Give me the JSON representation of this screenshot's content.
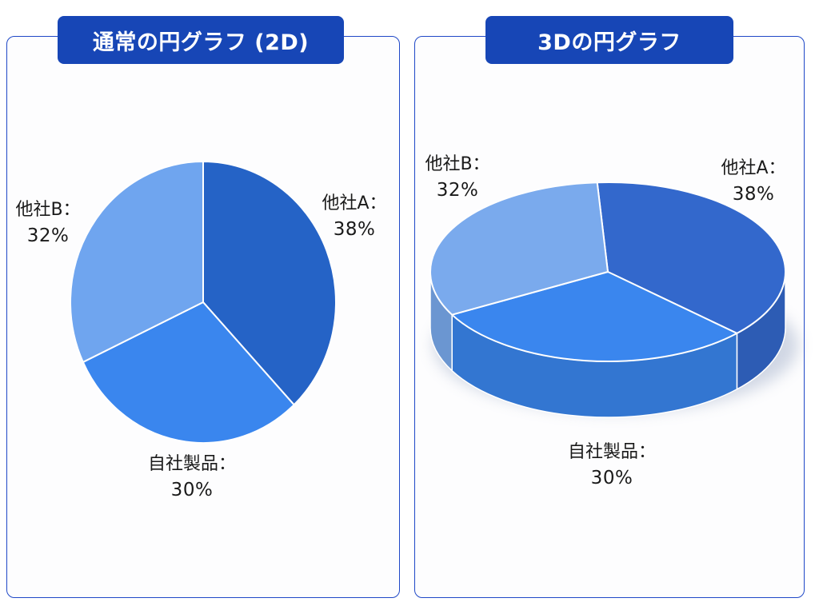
{
  "panels": [
    {
      "title": "通常の円グラフ (2D)",
      "chart_data": {
        "type": "pie",
        "style": "2d",
        "slices": [
          {
            "name": "他社A",
            "label": "他社A：",
            "value": 38,
            "value_label": "38%",
            "color": "#2563c6"
          },
          {
            "name": "自社製品",
            "label": "自社製品：",
            "value": 30,
            "value_label": "30%",
            "color": "#3a86ee"
          },
          {
            "name": "他社B",
            "label": "他社B：",
            "value": 32,
            "value_label": "32%",
            "color": "#6fa5ef"
          }
        ]
      }
    },
    {
      "title": "3Dの円グラフ",
      "chart_data": {
        "type": "pie",
        "style": "3d",
        "slices": [
          {
            "name": "他社A",
            "label": "他社A：",
            "value": 38,
            "value_label": "38%",
            "color": "#3368cc"
          },
          {
            "name": "自社製品",
            "label": "自社製品：",
            "value": 30,
            "value_label": "30%",
            "color": "#3a86ee"
          },
          {
            "name": "他社B",
            "label": "他社B：",
            "value": 32,
            "value_label": "32%",
            "color": "#7aaaed"
          }
        ]
      }
    }
  ]
}
